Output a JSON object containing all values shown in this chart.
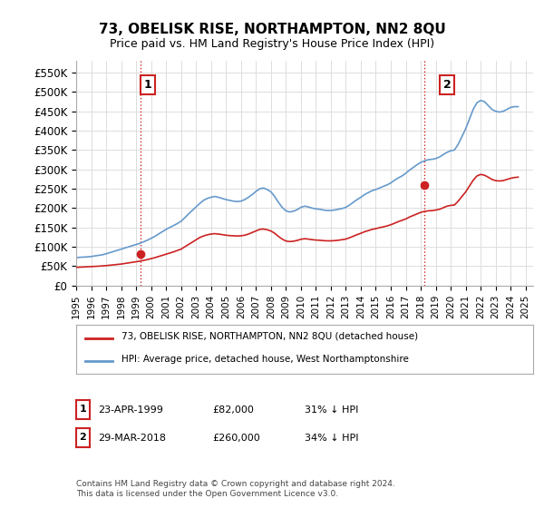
{
  "title": "73, OBELISK RISE, NORTHAMPTON, NN2 8QU",
  "subtitle": "Price paid vs. HM Land Registry's House Price Index (HPI)",
  "hpi_color": "#6699cc",
  "price_color": "#cc2222",
  "annotation_box_color": "#cc2222",
  "background_color": "#ffffff",
  "grid_color": "#dddddd",
  "ylim": [
    0,
    580000
  ],
  "yticks": [
    0,
    50000,
    100000,
    150000,
    200000,
    250000,
    300000,
    350000,
    400000,
    450000,
    500000,
    550000
  ],
  "ytick_labels": [
    "£0",
    "£50K",
    "£100K",
    "£150K",
    "£200K",
    "£250K",
    "£300K",
    "£350K",
    "£400K",
    "£450K",
    "£500K",
    "£550K"
  ],
  "xlim_start": 1995.0,
  "xlim_end": 2025.5,
  "xticks": [
    1995,
    1996,
    1997,
    1998,
    1999,
    2000,
    2001,
    2002,
    2003,
    2004,
    2005,
    2006,
    2007,
    2008,
    2009,
    2010,
    2011,
    2012,
    2013,
    2014,
    2015,
    2016,
    2017,
    2018,
    2019,
    2020,
    2021,
    2022,
    2023,
    2024,
    2025
  ],
  "sale1_x": 1999.31,
  "sale1_y": 82000,
  "sale1_label": "1",
  "sale2_x": 2018.24,
  "sale2_y": 260000,
  "sale2_label": "2",
  "legend_entry1": "73, OBELISK RISE, NORTHAMPTON, NN2 8QU (detached house)",
  "legend_entry2": "HPI: Average price, detached house, West Northamptonshire",
  "table_row1": [
    "1",
    "23-APR-1999",
    "£82,000",
    "31% ↓ HPI"
  ],
  "table_row2": [
    "2",
    "29-MAR-2018",
    "£260,000",
    "34% ↓ HPI"
  ],
  "footer": "Contains HM Land Registry data © Crown copyright and database right 2024.\nThis data is licensed under the Open Government Licence v3.0.",
  "hpi_data_x": [
    1995.0,
    1995.25,
    1995.5,
    1995.75,
    1996.0,
    1996.25,
    1996.5,
    1996.75,
    1997.0,
    1997.25,
    1997.5,
    1997.75,
    1998.0,
    1998.25,
    1998.5,
    1998.75,
    1999.0,
    1999.25,
    1999.5,
    1999.75,
    2000.0,
    2000.25,
    2000.5,
    2000.75,
    2001.0,
    2001.25,
    2001.5,
    2001.75,
    2002.0,
    2002.25,
    2002.5,
    2002.75,
    2003.0,
    2003.25,
    2003.5,
    2003.75,
    2004.0,
    2004.25,
    2004.5,
    2004.75,
    2005.0,
    2005.25,
    2005.5,
    2005.75,
    2006.0,
    2006.25,
    2006.5,
    2006.75,
    2007.0,
    2007.25,
    2007.5,
    2007.75,
    2008.0,
    2008.25,
    2008.5,
    2008.75,
    2009.0,
    2009.25,
    2009.5,
    2009.75,
    2010.0,
    2010.25,
    2010.5,
    2010.75,
    2011.0,
    2011.25,
    2011.5,
    2011.75,
    2012.0,
    2012.25,
    2012.5,
    2012.75,
    2013.0,
    2013.25,
    2013.5,
    2013.75,
    2014.0,
    2014.25,
    2014.5,
    2014.75,
    2015.0,
    2015.25,
    2015.5,
    2015.75,
    2016.0,
    2016.25,
    2016.5,
    2016.75,
    2017.0,
    2017.25,
    2017.5,
    2017.75,
    2018.0,
    2018.25,
    2018.5,
    2018.75,
    2019.0,
    2019.25,
    2019.5,
    2019.75,
    2020.0,
    2020.25,
    2020.5,
    2020.75,
    2021.0,
    2021.25,
    2021.5,
    2021.75,
    2022.0,
    2022.25,
    2022.5,
    2022.75,
    2023.0,
    2023.25,
    2023.5,
    2023.75,
    2024.0,
    2024.25,
    2024.5
  ],
  "hpi_data_y": [
    72000,
    73000,
    73500,
    74000,
    75000,
    76500,
    78000,
    79500,
    82000,
    85000,
    88000,
    91000,
    94000,
    97000,
    100000,
    103000,
    106000,
    109000,
    113000,
    117000,
    122000,
    127000,
    133000,
    139000,
    145000,
    150000,
    155000,
    160000,
    166000,
    175000,
    185000,
    194000,
    203000,
    212000,
    220000,
    225000,
    228000,
    230000,
    228000,
    225000,
    222000,
    220000,
    218000,
    217000,
    218000,
    222000,
    228000,
    235000,
    243000,
    250000,
    252000,
    248000,
    242000,
    230000,
    215000,
    202000,
    193000,
    190000,
    192000,
    196000,
    202000,
    205000,
    203000,
    200000,
    198000,
    197000,
    195000,
    194000,
    194000,
    195000,
    197000,
    199000,
    202000,
    208000,
    215000,
    222000,
    228000,
    235000,
    240000,
    245000,
    248000,
    252000,
    256000,
    260000,
    265000,
    272000,
    278000,
    283000,
    290000,
    298000,
    305000,
    312000,
    318000,
    322000,
    325000,
    326000,
    328000,
    332000,
    338000,
    344000,
    348000,
    350000,
    365000,
    385000,
    405000,
    430000,
    455000,
    472000,
    478000,
    475000,
    465000,
    455000,
    450000,
    448000,
    450000,
    455000,
    460000,
    462000,
    462000
  ],
  "price_data_x": [
    1995.0,
    1995.25,
    1995.5,
    1995.75,
    1996.0,
    1996.25,
    1996.5,
    1996.75,
    1997.0,
    1997.25,
    1997.5,
    1997.75,
    1998.0,
    1998.25,
    1998.5,
    1998.75,
    1999.0,
    1999.25,
    1999.5,
    1999.75,
    2000.0,
    2000.25,
    2000.5,
    2000.75,
    2001.0,
    2001.25,
    2001.5,
    2001.75,
    2002.0,
    2002.25,
    2002.5,
    2002.75,
    2003.0,
    2003.25,
    2003.5,
    2003.75,
    2004.0,
    2004.25,
    2004.5,
    2004.75,
    2005.0,
    2005.25,
    2005.5,
    2005.75,
    2006.0,
    2006.25,
    2006.5,
    2006.75,
    2007.0,
    2007.25,
    2007.5,
    2007.75,
    2008.0,
    2008.25,
    2008.5,
    2008.75,
    2009.0,
    2009.25,
    2009.5,
    2009.75,
    2010.0,
    2010.25,
    2010.5,
    2010.75,
    2011.0,
    2011.25,
    2011.5,
    2011.75,
    2012.0,
    2012.25,
    2012.5,
    2012.75,
    2013.0,
    2013.25,
    2013.5,
    2013.75,
    2014.0,
    2014.25,
    2014.5,
    2014.75,
    2015.0,
    2015.25,
    2015.5,
    2015.75,
    2016.0,
    2016.25,
    2016.5,
    2016.75,
    2017.0,
    2017.25,
    2017.5,
    2017.75,
    2018.0,
    2018.25,
    2018.5,
    2018.75,
    2019.0,
    2019.25,
    2019.5,
    2019.75,
    2020.0,
    2020.25,
    2020.5,
    2020.75,
    2021.0,
    2021.25,
    2021.5,
    2021.75,
    2022.0,
    2022.25,
    2022.5,
    2022.75,
    2023.0,
    2023.25,
    2023.5,
    2023.75,
    2024.0,
    2024.25,
    2024.5
  ],
  "price_data_y": [
    47000,
    47500,
    48000,
    48500,
    49000,
    49500,
    50000,
    50800,
    51500,
    52500,
    53500,
    54500,
    55500,
    57000,
    58500,
    60000,
    61500,
    63000,
    65000,
    67000,
    69500,
    72000,
    75000,
    78000,
    81000,
    84000,
    87000,
    90500,
    94000,
    100000,
    106000,
    112000,
    118000,
    124000,
    128000,
    131000,
    133000,
    134000,
    133000,
    131500,
    130000,
    129000,
    128500,
    128000,
    128500,
    130000,
    133000,
    137000,
    141000,
    145000,
    146000,
    144000,
    141000,
    135000,
    127000,
    120000,
    115000,
    113500,
    114500,
    116500,
    119500,
    121000,
    120000,
    118500,
    117500,
    117000,
    116000,
    115500,
    115500,
    116000,
    117000,
    118500,
    120000,
    123500,
    127500,
    131500,
    135000,
    139000,
    142000,
    145000,
    147000,
    149500,
    151500,
    154000,
    157000,
    161000,
    165000,
    168500,
    172000,
    177000,
    181000,
    185000,
    189000,
    191500,
    193000,
    193500,
    195000,
    197000,
    201000,
    205000,
    207000,
    208000,
    218000,
    230000,
    242000,
    257000,
    272000,
    283000,
    287000,
    285000,
    280000,
    274000,
    271000,
    270000,
    271000,
    274000,
    277000,
    279000,
    280000
  ]
}
